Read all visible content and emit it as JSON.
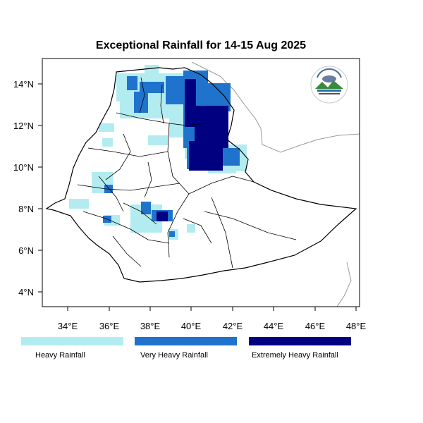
{
  "title": "Exceptional Rainfall for 14-15 Aug 2025",
  "axes": {
    "x_ticks": [
      "34°E",
      "36°E",
      "38°E",
      "40°E",
      "42°E",
      "44°E",
      "46°E",
      "48°E"
    ],
    "y_ticks": [
      "4°N",
      "6°N",
      "8°N",
      "10°N",
      "12°N",
      "14°N"
    ]
  },
  "legend": {
    "items": [
      {
        "label": "Heavy Rainfall",
        "color": "#b3ecf0"
      },
      {
        "label": "Very Heavy Rainfall",
        "color": "#1f73cc"
      },
      {
        "label": "Extremely Heavy Rainfall",
        "color": "#000080"
      }
    ]
  },
  "logo": {
    "icon": "meteorology-agency-logo-icon"
  }
}
